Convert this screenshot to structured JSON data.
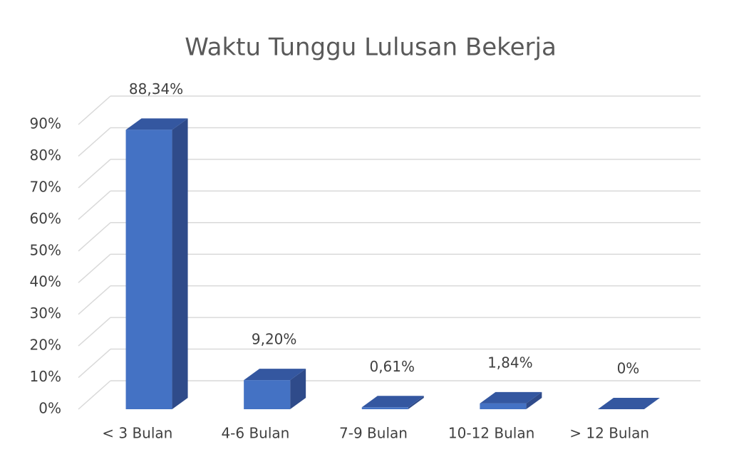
{
  "chart_data": {
    "type": "bar3d",
    "title": "Waktu Tunggu Lulusan Bekerja",
    "categories": [
      "< 3 Bulan",
      "4-6 Bulan",
      "7-9 Bulan",
      "10-12 Bulan",
      "> 12 Bulan"
    ],
    "values": [
      88.34,
      9.2,
      0.61,
      1.84,
      0
    ],
    "value_labels": [
      "88,34%",
      "9,20%",
      "0,61%",
      "1,84%",
      "0%"
    ],
    "color": "#4472c4",
    "ylim": [
      0,
      90
    ],
    "yticks": [
      {
        "value": 0,
        "label": "0%"
      },
      {
        "value": 10,
        "label": "10%"
      },
      {
        "value": 20,
        "label": "20%"
      },
      {
        "value": 30,
        "label": "30%"
      },
      {
        "value": 40,
        "label": "40%"
      },
      {
        "value": 50,
        "label": "50%"
      },
      {
        "value": 60,
        "label": "60%"
      },
      {
        "value": 70,
        "label": "70%"
      },
      {
        "value": 80,
        "label": "80%"
      },
      {
        "value": 90,
        "label": "90%"
      }
    ],
    "grid": true
  }
}
